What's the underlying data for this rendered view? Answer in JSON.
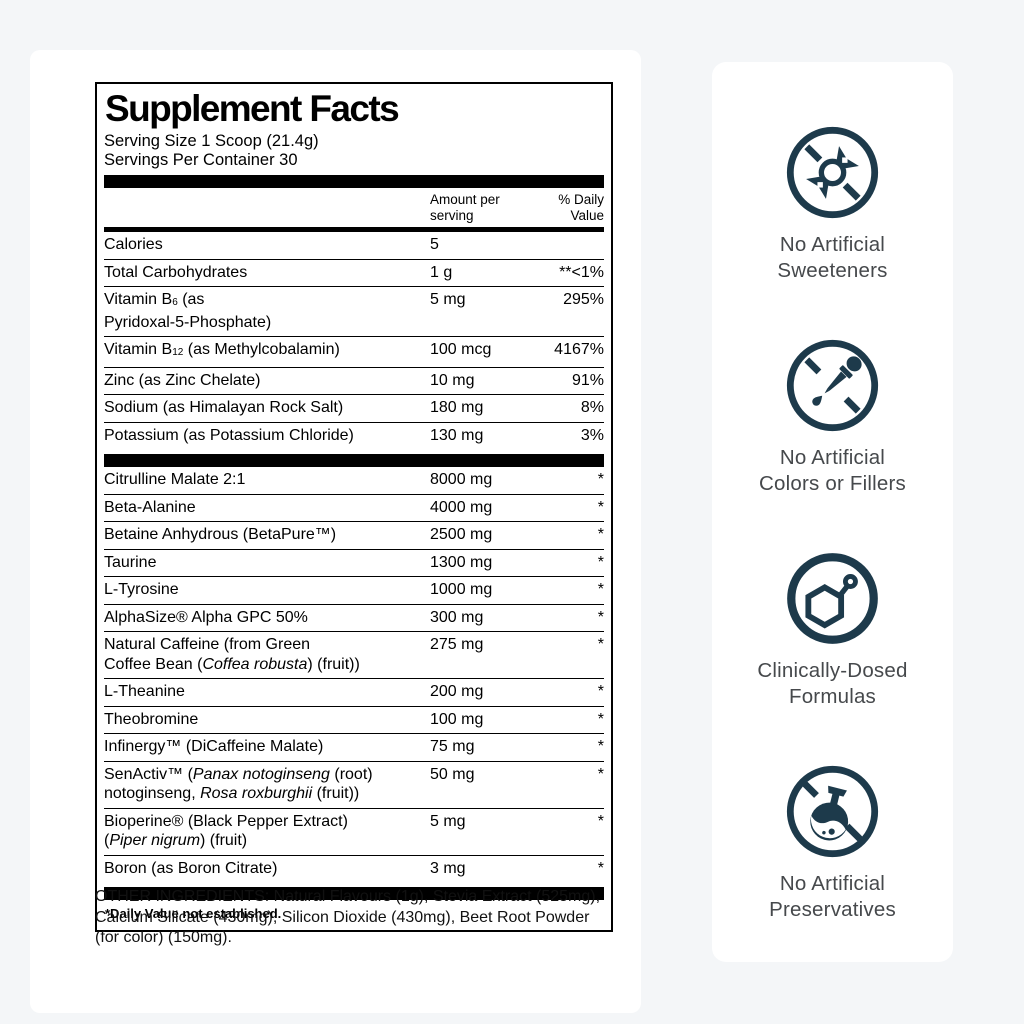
{
  "colors": {
    "background": "#f4f6f8",
    "card": "#ffffff",
    "icon": "#1d3a4b",
    "badge_text": "#46494c",
    "label_text": "#000000"
  },
  "label": {
    "title": "Supplement Facts",
    "serving_size": "Serving Size 1 Scoop (21.4g)",
    "servings_per_container": "Servings Per Container 30",
    "amount_header_lines": [
      "Amount per",
      "serving"
    ],
    "dv_header_lines": [
      "% Daily",
      "Value"
    ],
    "footnote": "*Daily Value not established.",
    "rows_nutrients": [
      {
        "name": [
          {
            "t": "Calories"
          }
        ],
        "amount": "5",
        "dv": ""
      },
      {
        "name": [
          {
            "t": "Total Carbohydrates"
          }
        ],
        "amount": "1 g",
        "dv": "**<1%"
      },
      {
        "name": [
          {
            "t": "Vitamin B"
          },
          {
            "t": "6",
            "sub": true
          },
          {
            "t": " (as"
          },
          {
            "br": true
          },
          {
            "t": "Pyridoxal-5-Phosphate)"
          }
        ],
        "amount": "5 mg",
        "dv": "295%"
      },
      {
        "name": [
          {
            "t": "Vitamin B"
          },
          {
            "t": "12",
            "sub": true
          },
          {
            "t": " (as Methylcobalamin)"
          }
        ],
        "amount": "100 mcg",
        "dv": "4167%"
      },
      {
        "name": [
          {
            "t": "Zinc (as Zinc Chelate)"
          }
        ],
        "amount": "10 mg",
        "dv": "91%"
      },
      {
        "name": [
          {
            "t": "Sodium (as Himalayan Rock Salt)"
          }
        ],
        "amount": "180 mg",
        "dv": "8%"
      },
      {
        "name": [
          {
            "t": "Potassium (as Potassium Chloride)"
          }
        ],
        "amount": "130 mg",
        "dv": "3%"
      }
    ],
    "rows_actives": [
      {
        "name": [
          {
            "t": "Citrulline Malate 2:1"
          }
        ],
        "amount": "8000 mg",
        "dv": "*"
      },
      {
        "name": [
          {
            "t": "Beta-Alanine"
          }
        ],
        "amount": "4000 mg",
        "dv": "*"
      },
      {
        "name": [
          {
            "t": "Betaine Anhydrous (BetaPure™)"
          }
        ],
        "amount": "2500 mg",
        "dv": "*"
      },
      {
        "name": [
          {
            "t": "Taurine"
          }
        ],
        "amount": "1300 mg",
        "dv": "*"
      },
      {
        "name": [
          {
            "t": "L-Tyrosine"
          }
        ],
        "amount": "1000 mg",
        "dv": "*"
      },
      {
        "name": [
          {
            "t": "AlphaSize® Alpha GPC 50%"
          }
        ],
        "amount": "300 mg",
        "dv": "*"
      },
      {
        "name": [
          {
            "t": "Natural Caffeine (from Green"
          },
          {
            "br": true
          },
          {
            "t": "Coffee Bean ("
          },
          {
            "t": "Coffea robusta",
            "i": true
          },
          {
            "t": ") (fruit))"
          }
        ],
        "amount": "275 mg",
        "dv": "*"
      },
      {
        "name": [
          {
            "t": "L-Theanine"
          }
        ],
        "amount": "200 mg",
        "dv": "*"
      },
      {
        "name": [
          {
            "t": "Theobromine"
          }
        ],
        "amount": "100 mg",
        "dv": "*"
      },
      {
        "name": [
          {
            "t": "Infinergy™ (DiCaffeine Malate)"
          }
        ],
        "amount": "75 mg",
        "dv": "*"
      },
      {
        "name": [
          {
            "t": "SenActiv™ ("
          },
          {
            "t": "Panax notoginseng",
            "i": true
          },
          {
            "t": " (root)"
          },
          {
            "br": true
          },
          {
            "t": "notoginseng, "
          },
          {
            "t": "Rosa roxburghii",
            "i": true
          },
          {
            "t": " (fruit))"
          }
        ],
        "amount": "50 mg",
        "dv": "*"
      },
      {
        "name": [
          {
            "t": "Bioperine® (Black Pepper Extract)"
          },
          {
            "br": true
          },
          {
            "t": "("
          },
          {
            "t": "Piper nigrum",
            "i": true
          },
          {
            "t": ") (fruit)"
          }
        ],
        "amount": "5 mg",
        "dv": "*"
      },
      {
        "name": [
          {
            "t": "Boron (as Boron Citrate)"
          }
        ],
        "amount": "3 mg",
        "dv": "*"
      }
    ]
  },
  "other_ingredients": "OTHER INGREDIENTS: Natural Flavours (1g), Stevia Extract (525mg), Calcium Silicate (430mg), Silicon Dioxide (430mg), Beet Root Powder (for color) (150mg).",
  "badges": {
    "items": [
      {
        "icon": "no-artificial-sweeteners-icon",
        "lines": [
          "No Artificial",
          "Sweeteners"
        ]
      },
      {
        "icon": "no-artificial-colors-icon",
        "lines": [
          "No Artificial",
          "Colors or Fillers"
        ]
      },
      {
        "icon": "clinically-dosed-icon",
        "lines": [
          "Clinically-Dosed",
          "Formulas"
        ]
      },
      {
        "icon": "no-artificial-preservatives-icon",
        "lines": [
          "No Artificial",
          "Preservatives"
        ]
      }
    ]
  }
}
